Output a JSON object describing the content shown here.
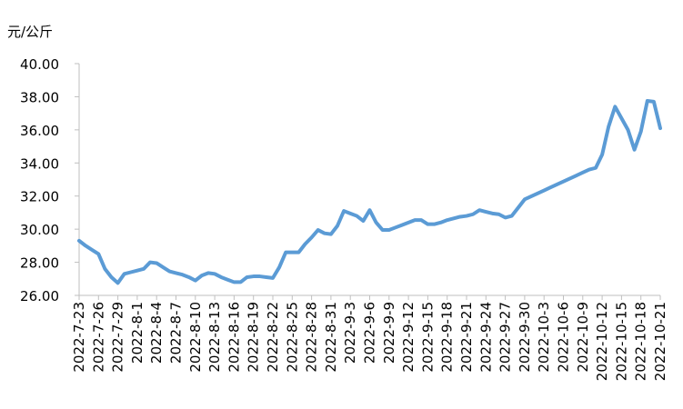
{
  "chart_data": {
    "type": "line",
    "y_label": "元/公斤",
    "categories": [
      "2022-7-23",
      null,
      null,
      "2022-7-26",
      null,
      null,
      "2022-7-29",
      null,
      null,
      "2022-8-1",
      null,
      null,
      "2022-8-4",
      null,
      null,
      "2022-8-7",
      null,
      null,
      "2022-8-10",
      null,
      null,
      "2022-8-13",
      null,
      null,
      "2022-8-16",
      null,
      null,
      "2022-8-19",
      null,
      null,
      "2022-8-22",
      null,
      null,
      "2022-8-25",
      null,
      null,
      "2022-8-28",
      null,
      null,
      "2022-8-31",
      null,
      null,
      "2022-9-3",
      null,
      null,
      "2022-9-6",
      null,
      null,
      "2022-9-9",
      null,
      null,
      "2022-9-12",
      null,
      null,
      "2022-9-15",
      null,
      null,
      "2022-9-18",
      null,
      null,
      "2022-9-21",
      null,
      null,
      "2022-9-24",
      null,
      null,
      "2022-9-27",
      null,
      null,
      "2022-9-30",
      null,
      null,
      "2022-10-3",
      null,
      null,
      "2022-10-6",
      null,
      null,
      "2022-10-9",
      null,
      null,
      "2022-10-12",
      null,
      null,
      "2022-10-15",
      null,
      null,
      "2022-10-18",
      null,
      null,
      "2022-10-21"
    ],
    "values": [
      29.3,
      29.0,
      28.75,
      28.5,
      27.6,
      27.1,
      26.75,
      27.3,
      27.4,
      27.5,
      27.6,
      28.0,
      27.95,
      27.7,
      27.45,
      27.35,
      27.25,
      27.1,
      26.9,
      27.2,
      27.35,
      27.3,
      27.1,
      26.95,
      26.8,
      26.8,
      27.1,
      27.15,
      27.15,
      27.1,
      27.05,
      27.7,
      28.6,
      28.6,
      28.6,
      29.1,
      29.5,
      29.95,
      29.75,
      29.7,
      30.2,
      31.1,
      30.95,
      30.8,
      30.5,
      31.15,
      30.4,
      29.95,
      29.95,
      30.1,
      30.25,
      30.4,
      30.55,
      30.55,
      30.3,
      30.3,
      30.4,
      30.55,
      30.65,
      30.75,
      30.8,
      30.9,
      31.15,
      31.05,
      30.95,
      30.9,
      30.7,
      30.8,
      31.3,
      31.8,
      31.98,
      32.16,
      32.34,
      32.52,
      32.7,
      32.88,
      33.06,
      33.24,
      33.42,
      33.6,
      33.7,
      34.5,
      36.2,
      37.4,
      36.7,
      36.0,
      34.8,
      35.9,
      37.75,
      37.7,
      36.1
    ],
    "color": "#5b9bd5",
    "ylim": [
      26,
      40
    ],
    "yticks": [
      {
        "value": 26,
        "label": "26.00"
      },
      {
        "value": 28,
        "label": "28.00"
      },
      {
        "value": 30,
        "label": "30.00"
      },
      {
        "value": 32,
        "label": "32.00"
      },
      {
        "value": 34,
        "label": "34.00"
      },
      {
        "value": 36,
        "label": "36.00"
      },
      {
        "value": 38,
        "label": "38.00"
      },
      {
        "value": 40,
        "label": "40.00"
      }
    ]
  }
}
